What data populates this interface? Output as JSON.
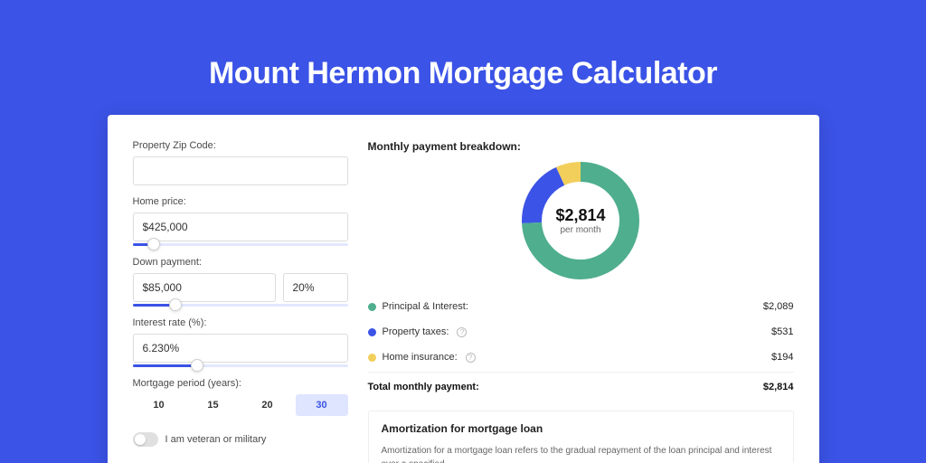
{
  "page": {
    "title": "Mount Hermon Mortgage Calculator",
    "background_color": "#3b53e6",
    "card_background": "#ffffff"
  },
  "form": {
    "zip": {
      "label": "Property Zip Code:",
      "value": ""
    },
    "home_price": {
      "label": "Home price:",
      "value": "$425,000",
      "slider_pct": 10
    },
    "down_payment": {
      "label": "Down payment:",
      "value": "$85,000",
      "pct_value": "20%",
      "slider_pct": 20
    },
    "interest_rate": {
      "label": "Interest rate (%):",
      "value": "6.230%",
      "slider_pct": 30
    },
    "mortgage_period": {
      "label": "Mortgage period (years):",
      "options": [
        "10",
        "15",
        "20",
        "30"
      ],
      "active_index": 3
    },
    "veteran": {
      "label": "I am veteran or military",
      "on": false
    }
  },
  "breakdown": {
    "title": "Monthly payment breakdown:",
    "center_amount": "$2,814",
    "center_sub": "per month",
    "donut": {
      "size": 130,
      "stroke_width": 22,
      "background_color": "#ffffff",
      "slices": [
        {
          "label": "Principal & Interest:",
          "value": "$2,089",
          "pct": 74.2,
          "color": "#4fae8e",
          "info": false
        },
        {
          "label": "Property taxes:",
          "value": "$531",
          "pct": 18.9,
          "color": "#3b53e6",
          "info": true
        },
        {
          "label": "Home insurance:",
          "value": "$194",
          "pct": 6.9,
          "color": "#f2cf5b",
          "info": true
        }
      ]
    },
    "total": {
      "label": "Total monthly payment:",
      "value": "$2,814"
    }
  },
  "amortization": {
    "title": "Amortization for mortgage loan",
    "text": "Amortization for a mortgage loan refers to the gradual repayment of the loan principal and interest over a specified"
  }
}
